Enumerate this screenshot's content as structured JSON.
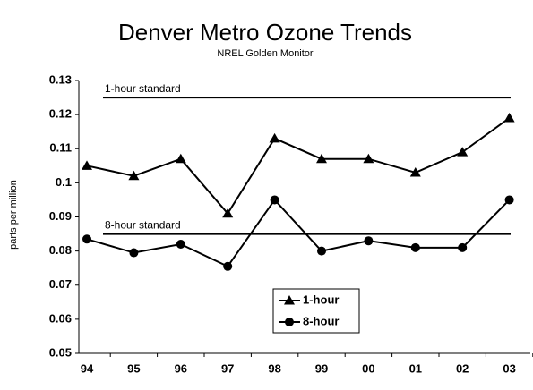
{
  "chart_data": {
    "type": "line",
    "title": "Denver Metro Ozone Trends",
    "subtitle": "NREL Golden Monitor",
    "y_label": "parts per million",
    "categories": [
      "94",
      "95",
      "96",
      "97",
      "98",
      "99",
      "00",
      "01",
      "02",
      "03"
    ],
    "series": [
      {
        "name": "1-hour",
        "color": "#000000",
        "marker": "triangle",
        "values": [
          0.105,
          0.102,
          0.107,
          0.091,
          0.113,
          0.107,
          0.107,
          0.103,
          0.109,
          0.119
        ]
      },
      {
        "name": "8-hour",
        "color": "#000000",
        "marker": "circle",
        "values": [
          0.0835,
          0.0795,
          0.082,
          0.0755,
          0.095,
          0.08,
          0.083,
          0.081,
          0.081,
          0.095
        ]
      }
    ],
    "reference_lines": [
      {
        "label": "1-hour standard",
        "value": 0.125
      },
      {
        "label": "8-hour standard",
        "value": 0.085
      }
    ],
    "ylim": [
      0.05,
      0.13
    ],
    "yticks": [
      0.05,
      0.06,
      0.07,
      0.08,
      0.09,
      0.1,
      0.11,
      0.12,
      0.13
    ],
    "grid": false,
    "legend": "bottom-center"
  }
}
